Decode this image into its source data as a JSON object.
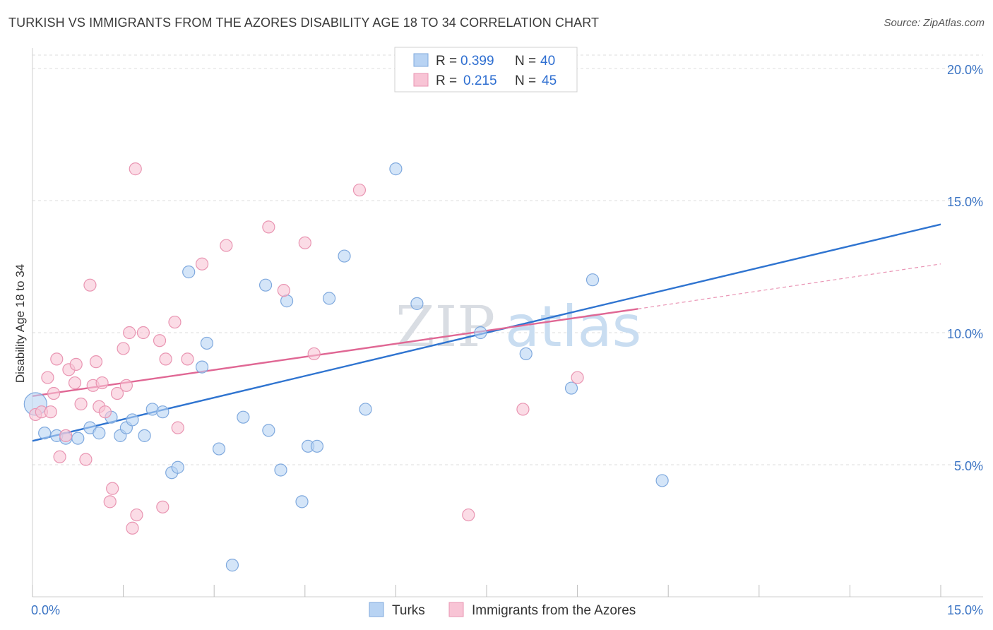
{
  "title": "TURKISH VS IMMIGRANTS FROM THE AZORES DISABILITY AGE 18 TO 34 CORRELATION CHART",
  "source": "Source: ZipAtlas.com",
  "watermark": {
    "part1": "ZIP",
    "part2": "atlas"
  },
  "colors": {
    "turks_fill": "#b8d3f3",
    "turks_stroke": "#7fa9de",
    "turks_line": "#2f74d0",
    "azores_fill": "#f8c4d5",
    "azores_stroke": "#e995b2",
    "azores_line": "#e06794",
    "grid": "#dcdcdc",
    "tick_label": "#3b74c4"
  },
  "stats_legend": {
    "r_label": "R =",
    "n_label": "N =",
    "rows": [
      {
        "series": "Turks",
        "r": "0.399",
        "n": "40"
      },
      {
        "series": "Immigrants from the Azores",
        "r": "0.215",
        "n": "45"
      }
    ]
  },
  "chart_data": {
    "type": "scatter",
    "title": "TURKISH VS IMMIGRANTS FROM THE AZORES DISABILITY AGE 18 TO 34 CORRELATION CHART",
    "xlabel": "",
    "ylabel": "Disability Age 18 to 34",
    "xlim": [
      0,
      15
    ],
    "ylim": [
      0,
      20
    ],
    "x_tick_labels": [
      "0.0%",
      "15.0%"
    ],
    "y_ticks": [
      5,
      10,
      15,
      20
    ],
    "y_tick_labels": [
      "5.0%",
      "10.0%",
      "15.0%",
      "20.0%"
    ],
    "grid": true,
    "legend_position": "bottom",
    "series": [
      {
        "name": "Turks",
        "points": [
          [
            0.05,
            7.3
          ],
          [
            0.2,
            6.2
          ],
          [
            0.4,
            6.1
          ],
          [
            0.55,
            6.0
          ],
          [
            0.75,
            6.0
          ],
          [
            0.95,
            6.4
          ],
          [
            1.1,
            6.2
          ],
          [
            1.3,
            6.8
          ],
          [
            1.45,
            6.1
          ],
          [
            1.55,
            6.4
          ],
          [
            1.65,
            6.7
          ],
          [
            1.85,
            6.1
          ],
          [
            1.98,
            7.1
          ],
          [
            2.15,
            7.0
          ],
          [
            2.3,
            4.7
          ],
          [
            2.4,
            4.9
          ],
          [
            2.58,
            12.3
          ],
          [
            2.8,
            8.7
          ],
          [
            2.88,
            9.6
          ],
          [
            3.08,
            5.6
          ],
          [
            3.3,
            1.2
          ],
          [
            3.48,
            6.8
          ],
          [
            3.85,
            11.8
          ],
          [
            3.9,
            6.3
          ],
          [
            4.1,
            4.8
          ],
          [
            4.2,
            11.2
          ],
          [
            4.45,
            3.6
          ],
          [
            4.55,
            5.7
          ],
          [
            4.7,
            5.7
          ],
          [
            4.9,
            11.3
          ],
          [
            5.15,
            12.9
          ],
          [
            5.5,
            7.1
          ],
          [
            6.0,
            16.2
          ],
          [
            6.35,
            11.1
          ],
          [
            7.0,
            20.1
          ],
          [
            7.4,
            10.0
          ],
          [
            8.15,
            9.2
          ],
          [
            8.9,
            7.9
          ],
          [
            9.25,
            12.0
          ],
          [
            10.4,
            4.4
          ]
        ]
      },
      {
        "name": "Immigrants from the Azores",
        "points": [
          [
            0.05,
            6.9
          ],
          [
            0.15,
            7.0
          ],
          [
            0.25,
            8.3
          ],
          [
            0.3,
            7.0
          ],
          [
            0.35,
            7.7
          ],
          [
            0.4,
            9.0
          ],
          [
            0.45,
            5.3
          ],
          [
            0.55,
            6.1
          ],
          [
            0.6,
            8.6
          ],
          [
            0.7,
            8.1
          ],
          [
            0.72,
            8.8
          ],
          [
            0.8,
            7.3
          ],
          [
            0.88,
            5.2
          ],
          [
            0.95,
            11.8
          ],
          [
            1.0,
            8.0
          ],
          [
            1.05,
            8.9
          ],
          [
            1.1,
            7.2
          ],
          [
            1.15,
            8.1
          ],
          [
            1.2,
            7.0
          ],
          [
            1.28,
            3.6
          ],
          [
            1.32,
            4.1
          ],
          [
            1.4,
            7.7
          ],
          [
            1.5,
            9.4
          ],
          [
            1.55,
            8.0
          ],
          [
            1.6,
            10.0
          ],
          [
            1.65,
            2.6
          ],
          [
            1.7,
            16.2
          ],
          [
            1.72,
            3.1
          ],
          [
            1.83,
            10.0
          ],
          [
            2.1,
            9.7
          ],
          [
            2.15,
            3.4
          ],
          [
            2.2,
            9.0
          ],
          [
            2.35,
            10.4
          ],
          [
            2.4,
            6.4
          ],
          [
            2.56,
            9.0
          ],
          [
            2.8,
            12.6
          ],
          [
            3.2,
            13.3
          ],
          [
            3.9,
            14.0
          ],
          [
            4.15,
            11.6
          ],
          [
            4.5,
            13.4
          ],
          [
            4.65,
            9.2
          ],
          [
            5.4,
            15.4
          ],
          [
            7.2,
            3.1
          ],
          [
            8.1,
            7.1
          ],
          [
            9.0,
            8.3
          ]
        ]
      }
    ],
    "trend_lines": [
      {
        "series": "Turks",
        "from": [
          0,
          5.9
        ],
        "to": [
          15,
          14.1
        ],
        "dashed_extension": null
      },
      {
        "series": "Immigrants from the Azores",
        "from": [
          0,
          7.6
        ],
        "to": [
          10.0,
          10.9
        ],
        "dashed_extension": [
          15,
          12.6
        ]
      }
    ]
  }
}
